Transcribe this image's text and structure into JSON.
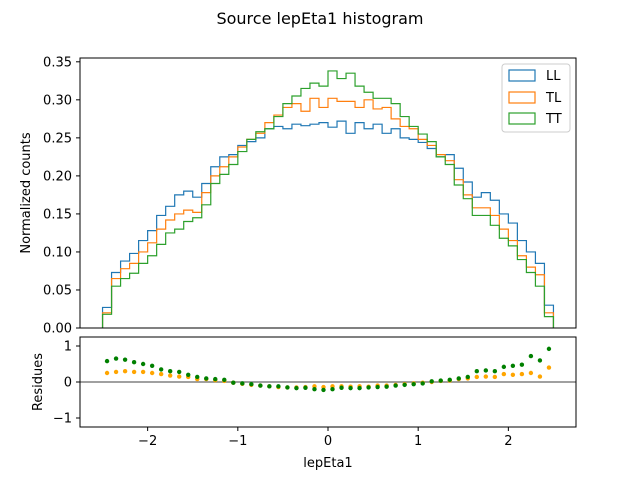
{
  "figure": {
    "title": "Source lepEta1 histogram"
  },
  "chart_data": [
    {
      "type": "histogram",
      "ylabel": "Normalized counts",
      "xlim": [
        -2.75,
        2.75
      ],
      "ylim": [
        0,
        0.355
      ],
      "yticks": [
        0.0,
        0.05,
        0.1,
        0.15,
        0.2,
        0.25,
        0.3,
        0.35
      ],
      "ytick_labels": [
        "0.00",
        "0.05",
        "0.10",
        "0.15",
        "0.20",
        "0.25",
        "0.30",
        "0.35"
      ],
      "bin_edges": [
        -2.5,
        -2.4,
        -2.3,
        -2.2,
        -2.1,
        -2.0,
        -1.9,
        -1.8,
        -1.7,
        -1.6,
        -1.5,
        -1.4,
        -1.3,
        -1.2,
        -1.1,
        -1.0,
        -0.9,
        -0.8,
        -0.7,
        -0.6,
        -0.5,
        -0.4,
        -0.3,
        -0.2,
        -0.1,
        0.0,
        0.1,
        0.2,
        0.3,
        0.4,
        0.5,
        0.6,
        0.7,
        0.8,
        0.9,
        1.0,
        1.1,
        1.2,
        1.3,
        1.4,
        1.5,
        1.6,
        1.7,
        1.8,
        1.9,
        2.0,
        2.1,
        2.2,
        2.3,
        2.4,
        2.5
      ],
      "legend_position": "top-right",
      "series": [
        {
          "name": "LL",
          "color": "#1f77b4",
          "values": [
            0.027,
            0.073,
            0.088,
            0.098,
            0.115,
            0.128,
            0.148,
            0.16,
            0.175,
            0.18,
            0.172,
            0.19,
            0.212,
            0.225,
            0.228,
            0.24,
            0.245,
            0.25,
            0.262,
            0.265,
            0.262,
            0.268,
            0.266,
            0.268,
            0.27,
            0.264,
            0.272,
            0.256,
            0.27,
            0.262,
            0.268,
            0.256,
            0.262,
            0.25,
            0.248,
            0.244,
            0.236,
            0.225,
            0.228,
            0.21,
            0.192,
            0.172,
            0.178,
            0.168,
            0.15,
            0.138,
            0.115,
            0.1,
            0.085,
            0.03
          ]
        },
        {
          "name": "TL",
          "color": "#ff7f0e",
          "values": [
            0.02,
            0.065,
            0.078,
            0.085,
            0.1,
            0.112,
            0.13,
            0.142,
            0.15,
            0.155,
            0.152,
            0.178,
            0.2,
            0.212,
            0.225,
            0.238,
            0.248,
            0.256,
            0.27,
            0.28,
            0.29,
            0.295,
            0.285,
            0.302,
            0.29,
            0.302,
            0.298,
            0.298,
            0.29,
            0.3,
            0.288,
            0.29,
            0.275,
            0.265,
            0.262,
            0.248,
            0.24,
            0.228,
            0.22,
            0.195,
            0.175,
            0.158,
            0.158,
            0.148,
            0.13,
            0.115,
            0.095,
            0.08,
            0.07,
            0.02
          ]
        },
        {
          "name": "TT",
          "color": "#2ca02c",
          "values": [
            0.018,
            0.055,
            0.065,
            0.072,
            0.085,
            0.095,
            0.11,
            0.125,
            0.13,
            0.14,
            0.145,
            0.162,
            0.19,
            0.202,
            0.215,
            0.232,
            0.248,
            0.258,
            0.262,
            0.278,
            0.295,
            0.305,
            0.315,
            0.322,
            0.318,
            0.338,
            0.328,
            0.335,
            0.318,
            0.31,
            0.302,
            0.302,
            0.295,
            0.278,
            0.265,
            0.255,
            0.245,
            0.225,
            0.215,
            0.188,
            0.17,
            0.148,
            0.148,
            0.135,
            0.118,
            0.108,
            0.09,
            0.073,
            0.055,
            0.015
          ]
        }
      ]
    },
    {
      "type": "scatter",
      "xlabel": "lepEta1",
      "ylabel": "Residues",
      "xlim": [
        -2.75,
        2.75
      ],
      "ylim": [
        -1.25,
        1.25
      ],
      "xticks": [
        -2,
        -1,
        0,
        1,
        2
      ],
      "xtick_labels": [
        "−2",
        "−1",
        "0",
        "1",
        "2"
      ],
      "yticks": [
        -1,
        0,
        1
      ],
      "ytick_labels": [
        "−1",
        "0",
        "1"
      ],
      "reference_line": 0,
      "x": [
        -2.45,
        -2.35,
        -2.25,
        -2.15,
        -2.05,
        -1.95,
        -1.85,
        -1.75,
        -1.65,
        -1.55,
        -1.45,
        -1.35,
        -1.25,
        -1.15,
        -1.05,
        -0.95,
        -0.85,
        -0.75,
        -0.65,
        -0.55,
        -0.45,
        -0.35,
        -0.25,
        -0.15,
        -0.05,
        0.05,
        0.15,
        0.25,
        0.35,
        0.45,
        0.55,
        0.65,
        0.75,
        0.85,
        0.95,
        1.05,
        1.15,
        1.25,
        1.35,
        1.45,
        1.55,
        1.65,
        1.75,
        1.85,
        1.95,
        2.05,
        2.15,
        2.25,
        2.35,
        2.45
      ],
      "series": [
        {
          "color": "#ffa500",
          "values": [
            0.25,
            0.28,
            0.3,
            0.28,
            0.28,
            0.25,
            0.22,
            0.18,
            0.15,
            0.14,
            0.08,
            0.08,
            0.05,
            0.03,
            -0.02,
            -0.05,
            -0.08,
            -0.1,
            -0.12,
            -0.14,
            -0.15,
            -0.15,
            -0.14,
            -0.12,
            -0.14,
            -0.12,
            -0.12,
            -0.13,
            -0.12,
            -0.13,
            -0.1,
            -0.1,
            -0.08,
            -0.06,
            -0.04,
            -0.02,
            0.0,
            0.03,
            0.04,
            0.08,
            0.1,
            0.14,
            0.15,
            0.14,
            0.22,
            0.2,
            0.22,
            0.25,
            0.15,
            0.4
          ]
        },
        {
          "color": "#008000",
          "values": [
            0.58,
            0.65,
            0.62,
            0.55,
            0.5,
            0.45,
            0.35,
            0.3,
            0.28,
            0.2,
            0.14,
            0.1,
            0.08,
            0.06,
            -0.02,
            -0.04,
            -0.06,
            -0.1,
            -0.12,
            -0.12,
            -0.15,
            -0.17,
            -0.16,
            -0.2,
            -0.22,
            -0.2,
            -0.16,
            -0.17,
            -0.17,
            -0.15,
            -0.14,
            -0.13,
            -0.1,
            -0.08,
            -0.06,
            -0.04,
            0.02,
            0.04,
            0.06,
            0.1,
            0.14,
            0.3,
            0.32,
            0.3,
            0.42,
            0.45,
            0.48,
            0.72,
            0.6,
            0.92
          ]
        }
      ]
    }
  ]
}
